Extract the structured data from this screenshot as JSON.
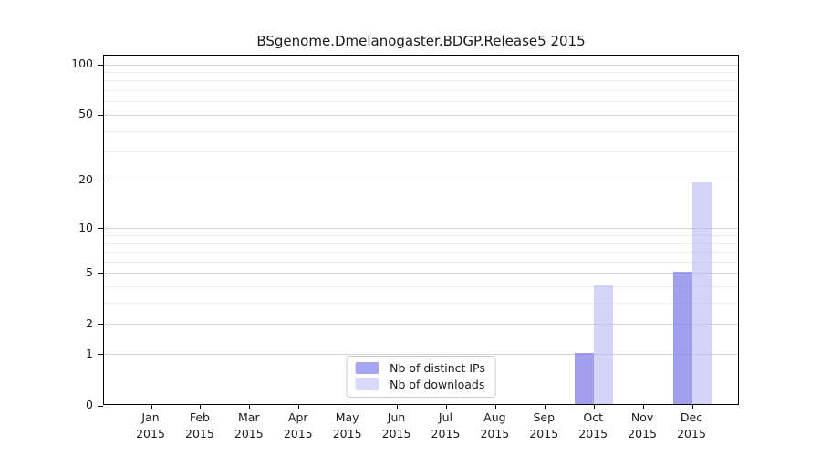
{
  "chart_data": {
    "type": "bar",
    "title": "BSgenome.Dmelanogaster.BDGP.Release5 2015",
    "categories": [
      "Jan",
      "Feb",
      "Mar",
      "Apr",
      "May",
      "Jun",
      "Jul",
      "Aug",
      "Sep",
      "Oct",
      "Nov",
      "Dec"
    ],
    "year_label": "2015",
    "series": [
      {
        "name": "Nb of distinct IPs",
        "color": "#a6a6f2",
        "bar_color": "rgba(124,124,233,0.72)",
        "values": [
          0,
          0,
          0,
          0,
          0,
          0,
          0,
          0,
          0,
          1,
          0,
          5
        ]
      },
      {
        "name": "Nb of downloads",
        "color": "#d8d8f8",
        "bar_color": "rgba(186,186,240,0.62)",
        "values": [
          0,
          0,
          0,
          0,
          0,
          0,
          0,
          0,
          0,
          4,
          0,
          19
        ]
      }
    ],
    "y_scale": "log10(1+x)",
    "y_ticks": [
      0,
      1,
      2,
      5,
      10,
      20,
      50,
      100
    ],
    "y_minor_gridlines": [
      3,
      4,
      6,
      7,
      8,
      9,
      30,
      40,
      60,
      70,
      80,
      90
    ],
    "ylim": [
      0,
      105
    ],
    "xlabel": "",
    "ylabel": "",
    "grid": true,
    "legend_position": "bottom-center-inside"
  },
  "colors": {
    "background": "#ffffff",
    "axis": "#000000",
    "grid_major": "#d6d6d6",
    "grid_minor": "#ebebeb",
    "legend_border": "#cccccc",
    "text": "#1a1a1a"
  }
}
